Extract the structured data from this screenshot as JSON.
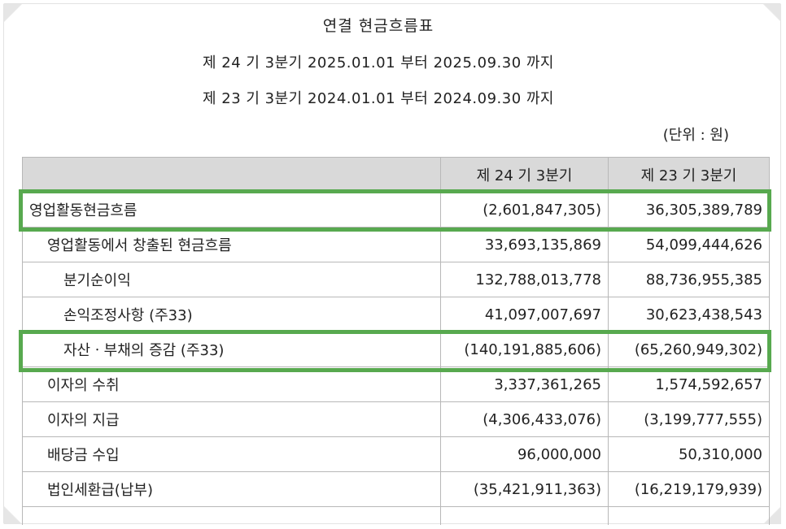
{
  "title": "연결 현금흐름표",
  "periods": [
    "제 24 기 3분기 2025.01.01 부터 2025.09.30 까지",
    "제 23 기 3분기 2024.01.01 부터 2024.09.30 까지"
  ],
  "unit": "(단위 : 원)",
  "table": {
    "headers": [
      "",
      "제 24 기 3분기",
      "제 23 기 3분기"
    ],
    "rows": [
      {
        "label": "영업활동현금흐름",
        "current": "(2,601,847,305)",
        "prior": "36,305,389,789",
        "highlighted": true
      },
      {
        "label": "영업활동에서 창출된 현금흐름",
        "current": "33,693,135,869",
        "prior": "54,099,444,626",
        "highlighted": false
      },
      {
        "label": "분기순이익",
        "current": "132,788,013,778",
        "prior": "88,736,955,385",
        "highlighted": false
      },
      {
        "label": "손익조정사항 (주33)",
        "current": "41,097,007,697",
        "prior": "30,623,438,543",
        "highlighted": false
      },
      {
        "label": "자산ㆍ부채의 증감 (주33)",
        "current": "(140,191,885,606)",
        "prior": "(65,260,949,302)",
        "highlighted": true
      },
      {
        "label": "이자의 수취",
        "current": "3,337,361,265",
        "prior": "1,574,592,657",
        "highlighted": false
      },
      {
        "label": "이자의 지급",
        "current": "(4,306,433,076)",
        "prior": "(3,199,777,555)",
        "highlighted": false
      },
      {
        "label": "배당금 수입",
        "current": "96,000,000",
        "prior": "50,310,000",
        "highlighted": false
      },
      {
        "label": "법인세환급(납부)",
        "current": "(35,421,911,363)",
        "prior": "(16,219,179,939)",
        "highlighted": false
      }
    ]
  },
  "highlight_color": "#58a94f",
  "header_bg": "#d9d9d9"
}
